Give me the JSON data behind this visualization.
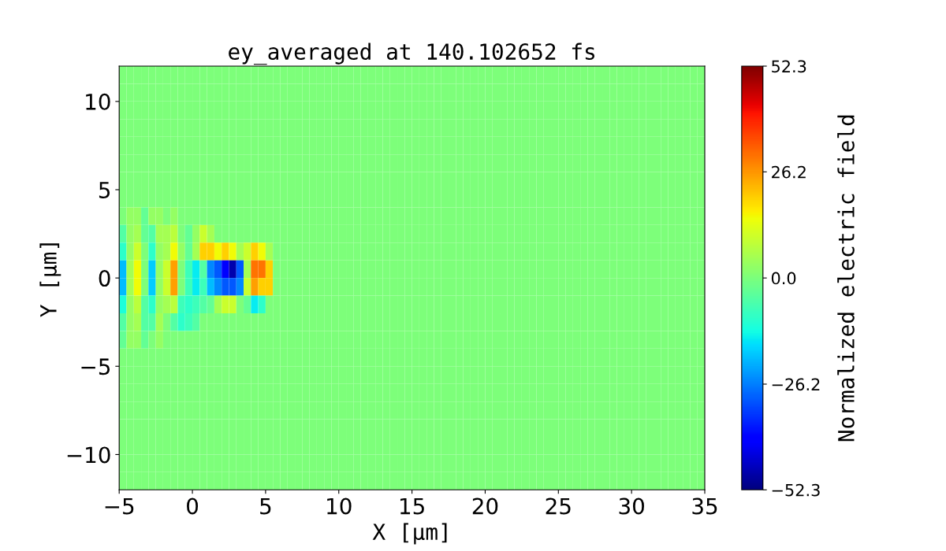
{
  "chart_data": {
    "type": "heatmap",
    "title": "ey_averaged at 140.102652 fs",
    "xlabel": "X [μm]",
    "ylabel": "Y [μm]",
    "clabel": "Normalized electric field",
    "xlim": [
      -5,
      35
    ],
    "ylim": [
      -12,
      12
    ],
    "xticks": [
      {
        "value": -5,
        "label": "−5"
      },
      0,
      5,
      10,
      15,
      20,
      25,
      30,
      35
    ],
    "yticks": [
      {
        "value": -10,
        "label": "−10"
      },
      {
        "value": -5,
        "label": "−5"
      },
      0,
      5,
      10
    ],
    "clim": [
      -52.3,
      52.3
    ],
    "cticks": [
      {
        "value": -52.3,
        "label": "−52.3"
      },
      {
        "value": -26.2,
        "label": "−26.2"
      },
      {
        "value": 0,
        "label": "0.0"
      },
      {
        "value": 26.2,
        "label": "26.2"
      },
      {
        "value": 52.3,
        "label": "52.3"
      }
    ],
    "grid": false,
    "cells": [
      [
        0,
        0,
        0,
        0,
        0,
        0,
        0,
        0,
        0,
        0,
        0,
        0,
        0,
        0,
        0,
        0,
        0,
        0,
        0,
        0,
        0,
        0,
        0,
        0,
        0,
        0,
        0,
        0,
        0,
        0,
        0,
        0,
        0,
        0,
        0,
        0,
        0,
        0,
        0,
        0,
        0,
        0,
        0,
        0,
        0,
        0,
        0,
        0,
        0,
        0,
        0,
        0,
        0,
        0,
        0,
        0,
        0,
        0,
        0,
        0,
        0,
        0,
        0,
        0,
        0,
        0,
        0,
        0,
        0,
        0,
        0,
        0,
        0,
        0,
        0,
        0,
        0,
        0,
        0,
        0
      ],
      [
        0,
        0,
        0,
        0,
        0,
        0,
        0,
        0,
        0,
        0,
        0,
        0,
        0,
        0,
        0,
        0,
        0,
        0,
        0,
        0,
        0,
        0,
        0,
        0,
        0,
        0,
        0,
        0,
        0,
        0,
        0,
        0,
        0,
        0,
        0,
        0,
        0,
        0,
        0,
        0,
        0,
        0,
        0,
        0,
        0,
        0,
        0,
        0,
        0,
        0,
        0,
        0,
        0,
        0,
        0,
        0,
        0,
        0,
        0,
        0,
        0,
        0,
        0,
        0,
        0,
        0,
        0,
        0,
        0,
        0,
        0,
        0,
        0,
        0,
        0,
        0,
        0,
        0,
        0,
        0
      ],
      [
        0,
        0,
        0,
        0,
        0,
        0,
        0,
        0,
        0,
        0,
        0,
        0,
        0,
        0,
        0,
        0,
        0,
        0,
        0,
        0,
        0,
        0,
        0,
        0,
        0,
        0,
        0,
        0,
        0,
        0,
        0,
        0,
        0,
        0,
        0,
        0,
        0,
        0,
        0,
        0,
        0,
        0,
        0,
        0,
        0,
        0,
        0,
        0,
        0,
        0,
        0,
        0,
        0,
        0,
        0,
        0,
        0,
        0,
        0,
        0,
        0,
        0,
        0,
        0,
        0,
        0,
        0,
        0,
        0,
        0,
        0,
        0,
        0,
        0,
        0,
        0,
        0,
        0,
        0,
        0
      ],
      [
        0,
        0,
        0,
        0,
        0,
        0,
        0,
        0,
        0,
        0,
        0,
        0,
        0,
        0,
        0,
        0,
        0,
        0,
        0,
        0,
        0,
        0,
        0,
        0,
        0,
        0,
        0,
        0,
        0,
        0,
        0,
        0,
        0,
        0,
        0,
        0,
        0,
        0,
        0,
        0,
        0,
        0,
        0,
        0,
        0,
        0,
        0,
        0,
        0,
        0,
        0,
        0,
        0,
        0,
        0,
        0,
        0,
        0,
        0,
        0,
        0,
        0,
        0,
        0,
        0,
        0,
        0,
        0,
        0,
        0,
        0,
        0,
        0,
        0,
        0,
        0,
        0,
        0,
        0,
        0
      ],
      [
        0,
        0,
        0,
        0,
        0,
        0,
        0,
        0,
        0,
        0,
        0,
        0,
        0,
        0,
        0,
        0,
        0,
        0,
        0,
        0,
        0,
        0,
        0,
        0,
        0,
        0,
        0,
        0,
        0,
        0,
        0,
        0,
        0,
        0,
        0,
        0,
        0,
        0,
        0,
        0,
        0,
        0,
        0,
        0,
        0,
        0,
        0,
        0,
        0,
        0,
        0,
        0,
        0,
        0,
        0,
        0,
        0,
        0,
        0,
        0,
        0,
        0,
        0,
        0,
        0,
        0,
        0,
        0,
        0,
        0,
        0,
        0,
        0,
        0,
        0,
        0,
        0,
        0,
        0,
        0
      ],
      [
        0,
        0,
        0,
        0,
        0,
        0,
        0,
        0,
        0,
        0,
        0,
        0,
        0,
        0,
        0,
        0,
        0,
        0,
        0,
        0,
        0,
        0,
        0,
        0,
        0,
        0,
        0,
        0,
        0,
        0,
        0,
        0,
        0,
        0,
        0,
        0,
        0,
        0,
        0,
        0,
        0,
        0,
        0,
        0,
        0,
        0,
        0,
        0,
        0,
        0,
        0,
        0,
        0,
        0,
        0,
        0,
        0,
        0,
        0,
        0,
        0,
        0,
        0,
        0,
        0,
        0,
        0,
        0,
        0,
        0,
        0,
        0,
        0,
        0,
        0,
        0,
        0,
        0,
        0,
        0
      ],
      [
        0,
        0,
        0,
        0,
        0,
        0,
        0,
        0,
        0,
        0,
        0,
        0,
        0,
        0,
        0,
        0,
        0,
        0,
        0,
        0,
        0,
        0,
        0,
        0,
        0,
        0,
        0,
        0,
        0,
        0,
        0,
        0,
        0,
        0,
        0,
        0,
        0,
        0,
        0,
        0,
        0,
        0,
        0,
        0,
        0,
        0,
        0,
        0,
        0,
        0,
        0,
        0,
        0,
        0,
        0,
        0,
        0,
        0,
        0,
        0,
        0,
        0,
        0,
        0,
        0,
        0,
        0,
        0,
        0,
        0,
        0,
        0,
        0,
        0,
        0,
        0,
        0,
        0,
        0,
        0
      ],
      [
        0,
        0,
        0,
        0,
        0,
        0,
        0,
        0,
        0,
        0,
        0,
        0,
        0,
        0,
        0,
        0,
        0,
        0,
        0,
        0,
        0,
        0,
        0,
        0,
        0,
        0,
        0,
        0,
        0,
        0,
        0,
        0,
        0,
        0,
        0,
        0,
        0,
        0,
        0,
        0,
        0,
        0,
        0,
        0,
        0,
        0,
        0,
        0,
        0,
        0,
        0,
        0,
        0,
        0,
        0,
        0,
        0,
        0,
        0,
        0,
        0,
        0,
        0,
        0,
        0,
        0,
        0,
        0,
        0,
        0,
        0,
        0,
        0,
        0,
        0,
        0,
        0,
        0,
        0,
        0
      ],
      [
        0,
        3,
        3,
        -3,
        3,
        3,
        0,
        3,
        0,
        0,
        0,
        0,
        0,
        0,
        0,
        0,
        0,
        0,
        0,
        0,
        0,
        0,
        0,
        0,
        0,
        0,
        0,
        0,
        0,
        0,
        0,
        0,
        0,
        0,
        0,
        0,
        0,
        0,
        0,
        0,
        0,
        0,
        0,
        0,
        0,
        0,
        0,
        0,
        0,
        0,
        0,
        0,
        0,
        0,
        0,
        0,
        0,
        0,
        0,
        0,
        0,
        0,
        0,
        0,
        0,
        0,
        0,
        0,
        0,
        0,
        0,
        0,
        0,
        0,
        0,
        0,
        0,
        0,
        0,
        0
      ],
      [
        -5,
        3,
        5,
        -3,
        -5,
        5,
        5,
        8,
        0,
        -3,
        3,
        10,
        5,
        0,
        0,
        0,
        0,
        0,
        0,
        0,
        0,
        0,
        0,
        0,
        0,
        0,
        0,
        0,
        0,
        0,
        0,
        0,
        0,
        0,
        0,
        0,
        0,
        0,
        0,
        0,
        0,
        0,
        0,
        0,
        0,
        0,
        0,
        0,
        0,
        0,
        0,
        0,
        0,
        0,
        0,
        0,
        0,
        0,
        0,
        0,
        0,
        0,
        0,
        0,
        0,
        0,
        0,
        0,
        0,
        0,
        0,
        0,
        0,
        0,
        0,
        0,
        0,
        0,
        0,
        0
      ],
      [
        -10,
        3,
        10,
        0,
        -10,
        3,
        5,
        15,
        3,
        -3,
        5,
        20,
        20,
        15,
        20,
        15,
        5,
        10,
        20,
        15,
        5,
        0,
        0,
        0,
        0,
        0,
        0,
        0,
        0,
        0,
        0,
        0,
        0,
        0,
        0,
        0,
        0,
        0,
        0,
        0,
        0,
        0,
        0,
        0,
        0,
        0,
        0,
        0,
        0,
        0,
        0,
        0,
        0,
        0,
        0,
        0,
        0,
        0,
        0,
        0,
        0,
        0,
        0,
        0,
        0,
        0,
        0,
        0,
        0,
        0,
        0,
        0,
        0,
        0,
        0,
        0,
        0,
        0,
        0,
        0
      ],
      [
        -20,
        5,
        15,
        0,
        -18,
        3,
        10,
        25,
        0,
        -8,
        -15,
        -5,
        -25,
        -30,
        -40,
        -48,
        -30,
        5,
        30,
        30,
        20,
        0,
        0,
        0,
        0,
        0,
        0,
        0,
        0,
        0,
        0,
        0,
        0,
        0,
        0,
        0,
        0,
        0,
        0,
        0,
        0,
        0,
        0,
        0,
        0,
        0,
        0,
        0,
        0,
        0,
        0,
        0,
        0,
        0,
        0,
        0,
        0,
        0,
        0,
        0,
        0,
        0,
        0,
        0,
        0,
        0,
        0,
        0,
        0,
        0,
        0,
        0,
        0,
        0,
        0,
        0,
        0,
        0,
        0,
        0
      ],
      [
        -20,
        5,
        15,
        0,
        -18,
        3,
        10,
        25,
        0,
        -8,
        -15,
        -8,
        -20,
        -25,
        -30,
        -30,
        -25,
        10,
        25,
        20,
        20,
        0,
        0,
        0,
        0,
        0,
        0,
        0,
        0,
        0,
        0,
        0,
        0,
        0,
        0,
        0,
        0,
        0,
        0,
        0,
        0,
        0,
        0,
        0,
        0,
        0,
        0,
        0,
        0,
        0,
        0,
        0,
        0,
        0,
        0,
        0,
        0,
        0,
        0,
        0,
        0,
        0,
        0,
        0,
        0,
        0,
        0,
        0,
        0,
        0,
        0,
        0,
        0,
        0,
        0,
        0,
        0,
        0,
        0,
        0
      ],
      [
        -12,
        3,
        8,
        -5,
        -10,
        3,
        5,
        8,
        -8,
        -10,
        -8,
        -5,
        -3,
        5,
        10,
        10,
        0,
        -3,
        -15,
        -10,
        0,
        0,
        0,
        0,
        0,
        0,
        0,
        0,
        0,
        0,
        0,
        0,
        0,
        0,
        0,
        0,
        0,
        0,
        0,
        0,
        0,
        0,
        0,
        0,
        0,
        0,
        0,
        0,
        0,
        0,
        0,
        0,
        0,
        0,
        0,
        0,
        0,
        0,
        0,
        0,
        0,
        0,
        0,
        0,
        0,
        0,
        0,
        0,
        0,
        0,
        0,
        0,
        0,
        0,
        0,
        0,
        0,
        0,
        0,
        0
      ],
      [
        -5,
        3,
        5,
        -5,
        -5,
        5,
        0,
        -5,
        -10,
        -8,
        -5,
        0,
        0,
        0,
        0,
        0,
        0,
        0,
        0,
        0,
        0,
        0,
        0,
        0,
        0,
        0,
        0,
        0,
        0,
        0,
        0,
        0,
        0,
        0,
        0,
        0,
        0,
        0,
        0,
        0,
        0,
        0,
        0,
        0,
        0,
        0,
        0,
        0,
        0,
        0,
        0,
        0,
        0,
        0,
        0,
        0,
        0,
        0,
        0,
        0,
        0,
        0,
        0,
        0,
        0,
        0,
        0,
        0,
        0,
        0,
        0,
        0,
        0,
        0,
        0,
        0,
        0,
        0,
        0,
        0
      ],
      [
        -3,
        3,
        3,
        -3,
        0,
        3,
        0,
        0,
        0,
        0,
        0,
        0,
        0,
        0,
        0,
        0,
        0,
        0,
        0,
        0,
        0,
        0,
        0,
        0,
        0,
        0,
        0,
        0,
        0,
        0,
        0,
        0,
        0,
        0,
        0,
        0,
        0,
        0,
        0,
        0,
        0,
        0,
        0,
        0,
        0,
        0,
        0,
        0,
        0,
        0,
        0,
        0,
        0,
        0,
        0,
        0,
        0,
        0,
        0,
        0,
        0,
        0,
        0,
        0,
        0,
        0,
        0,
        0,
        0,
        0,
        0,
        0,
        0,
        0,
        0,
        0,
        0,
        0,
        0,
        0
      ],
      [
        0,
        0,
        0,
        0,
        0,
        0,
        0,
        0,
        0,
        0,
        0,
        0,
        0,
        0,
        0,
        0,
        0,
        0,
        0,
        0,
        0,
        0,
        0,
        0,
        0,
        0,
        0,
        0,
        0,
        0,
        0,
        0,
        0,
        0,
        0,
        0,
        0,
        0,
        0,
        0,
        0,
        0,
        0,
        0,
        0,
        0,
        0,
        0,
        0,
        0,
        0,
        0,
        0,
        0,
        0,
        0,
        0,
        0,
        0,
        0,
        0,
        0,
        0,
        0,
        0,
        0,
        0,
        0,
        0,
        0,
        0,
        0,
        0,
        0,
        0,
        0,
        0,
        0,
        0,
        0
      ],
      [
        0,
        0,
        0,
        0,
        0,
        0,
        0,
        0,
        0,
        0,
        0,
        0,
        0,
        0,
        0,
        0,
        0,
        0,
        0,
        0,
        0,
        0,
        0,
        0,
        0,
        0,
        0,
        0,
        0,
        0,
        0,
        0,
        0,
        0,
        0,
        0,
        0,
        0,
        0,
        0,
        0,
        0,
        0,
        0,
        0,
        0,
        0,
        0,
        0,
        0,
        0,
        0,
        0,
        0,
        0,
        0,
        0,
        0,
        0,
        0,
        0,
        0,
        0,
        0,
        0,
        0,
        0,
        0,
        0,
        0,
        0,
        0,
        0,
        0,
        0,
        0,
        0,
        0,
        0,
        0
      ],
      [
        0,
        0,
        0,
        0,
        0,
        0,
        0,
        0,
        0,
        0,
        0,
        0,
        0,
        0,
        0,
        0,
        0,
        0,
        0,
        0,
        0,
        0,
        0,
        0,
        0,
        0,
        0,
        0,
        0,
        0,
        0,
        0,
        0,
        0,
        0,
        0,
        0,
        0,
        0,
        0,
        0,
        0,
        0,
        0,
        0,
        0,
        0,
        0,
        0,
        0,
        0,
        0,
        0,
        0,
        0,
        0,
        0,
        0,
        0,
        0,
        0,
        0,
        0,
        0,
        0,
        0,
        0,
        0,
        0,
        0,
        0,
        0,
        0,
        0,
        0,
        0,
        0,
        0,
        0,
        0
      ],
      [
        0,
        0,
        0,
        0,
        0,
        0,
        0,
        0,
        0,
        0,
        0,
        0,
        0,
        0,
        0,
        0,
        0,
        0,
        0,
        0,
        0,
        0,
        0,
        0,
        0,
        0,
        0,
        0,
        0,
        0,
        0,
        0,
        0,
        0,
        0,
        0,
        0,
        0,
        0,
        0,
        0,
        0,
        0,
        0,
        0,
        0,
        0,
        0,
        0,
        0,
        0,
        0,
        0,
        0,
        0,
        0,
        0,
        0,
        0,
        0,
        0,
        0,
        0,
        0,
        0,
        0,
        0,
        0,
        0,
        0,
        0,
        0,
        0,
        0,
        0,
        0,
        0,
        0,
        0,
        0
      ],
      [
        0,
        0,
        0,
        0,
        0,
        0,
        0,
        0,
        0,
        0,
        0,
        0,
        0,
        0,
        0,
        0,
        0,
        0,
        0,
        0,
        0,
        0,
        0,
        0,
        0,
        0,
        0,
        0,
        0,
        0,
        0,
        0,
        0,
        0,
        0,
        0,
        0,
        0,
        0,
        0,
        0,
        0,
        0,
        0,
        0,
        0,
        0,
        0,
        0,
        0,
        0,
        0,
        0,
        0,
        0,
        0,
        0,
        0,
        0,
        0,
        0,
        0,
        0,
        0,
        0,
        0,
        0,
        0,
        0,
        0,
        0,
        0,
        0,
        0,
        0,
        0,
        0,
        0,
        0,
        0
      ],
      [
        0,
        0,
        0,
        0,
        0,
        0,
        0,
        0,
        0,
        0,
        0,
        0,
        0,
        0,
        0,
        0,
        0,
        0,
        0,
        0,
        0,
        0,
        0,
        0,
        0,
        0,
        0,
        0,
        0,
        0,
        0,
        0,
        0,
        0,
        0,
        0,
        0,
        0,
        0,
        0,
        0,
        0,
        0,
        0,
        0,
        0,
        0,
        0,
        0,
        0,
        0,
        0,
        0,
        0,
        0,
        0,
        0,
        0,
        0,
        0,
        0,
        0,
        0,
        0,
        0,
        0,
        0,
        0,
        0,
        0,
        0,
        0,
        0,
        0,
        0,
        0,
        0,
        0,
        0,
        0
      ],
      [
        0,
        0,
        0,
        0,
        0,
        0,
        0,
        0,
        0,
        0,
        0,
        0,
        0,
        0,
        0,
        0,
        0,
        0,
        0,
        0,
        0,
        0,
        0,
        0,
        0,
        0,
        0,
        0,
        0,
        0,
        0,
        0,
        0,
        0,
        0,
        0,
        0,
        0,
        0,
        0,
        0,
        0,
        0,
        0,
        0,
        0,
        0,
        0,
        0,
        0,
        0,
        0,
        0,
        0,
        0,
        0,
        0,
        0,
        0,
        0,
        0,
        0,
        0,
        0,
        0,
        0,
        0,
        0,
        0,
        0,
        0,
        0,
        0,
        0,
        0,
        0,
        0,
        0,
        0,
        0
      ],
      [
        0,
        0,
        0,
        0,
        0,
        0,
        0,
        0,
        0,
        0,
        0,
        0,
        0,
        0,
        0,
        0,
        0,
        0,
        0,
        0,
        0,
        0,
        0,
        0,
        0,
        0,
        0,
        0,
        0,
        0,
        0,
        0,
        0,
        0,
        0,
        0,
        0,
        0,
        0,
        0,
        0,
        0,
        0,
        0,
        0,
        0,
        0,
        0,
        0,
        0,
        0,
        0,
        0,
        0,
        0,
        0,
        0,
        0,
        0,
        0,
        0,
        0,
        0,
        0,
        0,
        0,
        0,
        0,
        0,
        0,
        0,
        0,
        0,
        0,
        0,
        0,
        0,
        0,
        0,
        0
      ]
    ]
  }
}
